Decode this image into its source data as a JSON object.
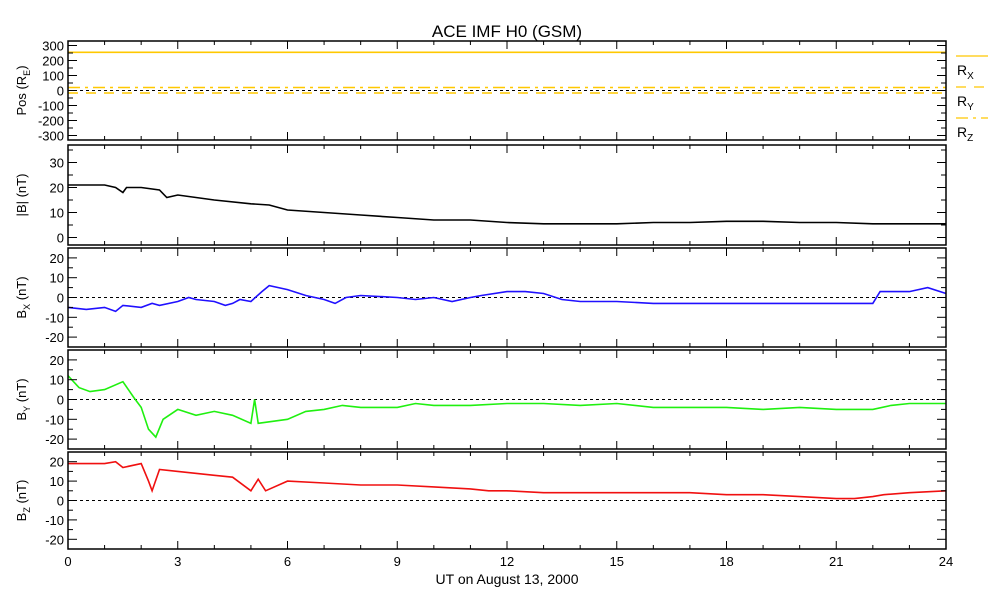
{
  "chart_data": {
    "type": "line",
    "title": "ACE IMF H0 (GSM)",
    "xlabel": "UT on August 13, 2000",
    "xlim": [
      0,
      24
    ],
    "xticks": [
      0,
      3,
      6,
      9,
      12,
      15,
      18,
      21,
      24
    ],
    "panels": [
      {
        "id": "pos",
        "ylabel": "Pos (R",
        "ylabel_sub": "E",
        "ylabel_end": ")",
        "ylim": [
          -330,
          330
        ],
        "yticks": [
          300,
          200,
          100,
          0,
          -100,
          -200,
          -300
        ],
        "zero_line": true,
        "legend_position": "right",
        "series": [
          {
            "name": "R",
            "sub": "X",
            "color": "#ffc800",
            "dash": "solid",
            "points": [
              [
                0,
                255
              ],
              [
                24,
                255
              ]
            ]
          },
          {
            "name": "R",
            "sub": "Y",
            "color": "#ffc800",
            "dash": "dashed",
            "points": [
              [
                0,
                -17
              ],
              [
                24,
                -17
              ]
            ]
          },
          {
            "name": "R",
            "sub": "Z",
            "color": "#ffc800",
            "dash": "dashdot",
            "points": [
              [
                0,
                20
              ],
              [
                24,
                20
              ]
            ]
          }
        ]
      },
      {
        "id": "bmag",
        "ylabel": "|B| (nT)",
        "ylabel_sub": "",
        "ylabel_end": "",
        "ylim": [
          -3,
          37
        ],
        "yticks": [
          30,
          20,
          10,
          0
        ],
        "zero_line": false,
        "series": [
          {
            "name": "|B|",
            "color": "#000000",
            "dash": "solid",
            "points": [
              [
                0,
                21
              ],
              [
                1,
                21
              ],
              [
                1.3,
                20
              ],
              [
                1.5,
                18
              ],
              [
                1.6,
                20
              ],
              [
                2,
                20
              ],
              [
                2.5,
                19
              ],
              [
                2.7,
                16
              ],
              [
                3,
                17
              ],
              [
                4,
                15
              ],
              [
                5,
                13.5
              ],
              [
                5.5,
                13
              ],
              [
                6,
                11
              ],
              [
                7,
                10
              ],
              [
                8,
                9
              ],
              [
                9,
                8
              ],
              [
                10,
                7
              ],
              [
                11,
                7
              ],
              [
                12,
                6
              ],
              [
                13,
                5.5
              ],
              [
                14,
                5.5
              ],
              [
                15,
                5.5
              ],
              [
                16,
                6
              ],
              [
                17,
                6
              ],
              [
                18,
                6.5
              ],
              [
                19,
                6.5
              ],
              [
                20,
                6
              ],
              [
                21,
                6
              ],
              [
                22,
                5.5
              ],
              [
                23,
                5.5
              ],
              [
                24,
                5.5
              ]
            ]
          }
        ]
      },
      {
        "id": "bx",
        "ylabel": "B",
        "ylabel_sub": "X",
        "ylabel_end": " (nT)",
        "ylim": [
          -25,
          25
        ],
        "yticks": [
          20,
          10,
          0,
          -10,
          -20
        ],
        "zero_line": true,
        "series": [
          {
            "name": "Bx",
            "color": "#2010ff",
            "dash": "solid",
            "points": [
              [
                0,
                -5
              ],
              [
                0.5,
                -6
              ],
              [
                1,
                -5
              ],
              [
                1.3,
                -7
              ],
              [
                1.5,
                -4
              ],
              [
                2,
                -5
              ],
              [
                2.3,
                -3
              ],
              [
                2.5,
                -4
              ],
              [
                3,
                -2
              ],
              [
                3.3,
                0
              ],
              [
                3.5,
                -1
              ],
              [
                4,
                -2
              ],
              [
                4.3,
                -4
              ],
              [
                4.5,
                -3
              ],
              [
                4.7,
                -1
              ],
              [
                5,
                -2
              ],
              [
                5.3,
                3
              ],
              [
                5.5,
                6
              ],
              [
                6,
                4
              ],
              [
                6.5,
                1
              ],
              [
                7,
                -1
              ],
              [
                7.3,
                -3
              ],
              [
                7.6,
                0
              ],
              [
                8,
                1
              ],
              [
                9,
                0
              ],
              [
                9.5,
                -1
              ],
              [
                10,
                0
              ],
              [
                10.5,
                -2
              ],
              [
                11,
                0
              ],
              [
                11.3,
                1
              ],
              [
                12,
                3
              ],
              [
                12.5,
                3
              ],
              [
                13,
                2
              ],
              [
                13.5,
                -1
              ],
              [
                14,
                -2
              ],
              [
                15,
                -2
              ],
              [
                16,
                -3
              ],
              [
                17,
                -3
              ],
              [
                18,
                -3
              ],
              [
                19,
                -3
              ],
              [
                20,
                -3
              ],
              [
                21,
                -3
              ],
              [
                22,
                -3
              ],
              [
                22.2,
                3
              ],
              [
                23,
                3
              ],
              [
                23.5,
                5
              ],
              [
                24,
                2
              ]
            ]
          }
        ]
      },
      {
        "id": "by",
        "ylabel": "B",
        "ylabel_sub": "Y",
        "ylabel_end": " (nT)",
        "ylim": [
          -25,
          25
        ],
        "yticks": [
          20,
          10,
          0,
          -10,
          -20
        ],
        "zero_line": true,
        "series": [
          {
            "name": "By",
            "color": "#20f010",
            "dash": "solid",
            "points": [
              [
                0,
                12
              ],
              [
                0.3,
                6
              ],
              [
                0.6,
                4
              ],
              [
                1,
                5
              ],
              [
                1.5,
                9
              ],
              [
                1.8,
                1
              ],
              [
                2,
                -4
              ],
              [
                2.2,
                -15
              ],
              [
                2.4,
                -19
              ],
              [
                2.6,
                -10
              ],
              [
                3,
                -5
              ],
              [
                3.5,
                -8
              ],
              [
                4,
                -6
              ],
              [
                4.5,
                -8
              ],
              [
                5,
                -12
              ],
              [
                5.1,
                0
              ],
              [
                5.2,
                -12
              ],
              [
                6,
                -10
              ],
              [
                6.5,
                -6
              ],
              [
                7,
                -5
              ],
              [
                7.5,
                -3
              ],
              [
                8,
                -4
              ],
              [
                9,
                -4
              ],
              [
                9.5,
                -2
              ],
              [
                10,
                -3
              ],
              [
                11,
                -3
              ],
              [
                12,
                -2
              ],
              [
                13,
                -2
              ],
              [
                14,
                -3
              ],
              [
                15,
                -2
              ],
              [
                16,
                -4
              ],
              [
                17,
                -4
              ],
              [
                18,
                -4
              ],
              [
                19,
                -5
              ],
              [
                20,
                -4
              ],
              [
                21,
                -5
              ],
              [
                22,
                -5
              ],
              [
                22.5,
                -3
              ],
              [
                23,
                -2
              ],
              [
                24,
                -2
              ]
            ]
          }
        ]
      },
      {
        "id": "bz",
        "ylabel": "B",
        "ylabel_sub": "Z",
        "ylabel_end": " (nT)",
        "ylim": [
          -25,
          25
        ],
        "yticks": [
          20,
          10,
          0,
          -10,
          -20
        ],
        "zero_line": true,
        "series": [
          {
            "name": "Bz",
            "color": "#f01010",
            "dash": "solid",
            "points": [
              [
                0,
                19
              ],
              [
                1,
                19
              ],
              [
                1.3,
                20
              ],
              [
                1.5,
                17
              ],
              [
                2,
                19
              ],
              [
                2.2,
                10
              ],
              [
                2.3,
                5
              ],
              [
                2.5,
                16
              ],
              [
                3,
                15
              ],
              [
                4,
                13
              ],
              [
                4.5,
                12
              ],
              [
                5,
                5
              ],
              [
                5.2,
                11
              ],
              [
                5.4,
                5
              ],
              [
                6,
                10
              ],
              [
                7,
                9
              ],
              [
                8,
                8
              ],
              [
                9,
                8
              ],
              [
                10,
                7
              ],
              [
                11,
                6
              ],
              [
                11.5,
                5
              ],
              [
                12,
                5
              ],
              [
                13,
                4
              ],
              [
                14,
                4
              ],
              [
                15,
                4
              ],
              [
                16,
                4
              ],
              [
                17,
                4
              ],
              [
                18,
                3
              ],
              [
                19,
                3
              ],
              [
                20,
                2
              ],
              [
                21,
                1
              ],
              [
                21.5,
                1
              ],
              [
                22,
                2
              ],
              [
                22.3,
                3
              ],
              [
                23,
                4
              ],
              [
                24,
                5
              ]
            ]
          }
        ]
      }
    ]
  }
}
